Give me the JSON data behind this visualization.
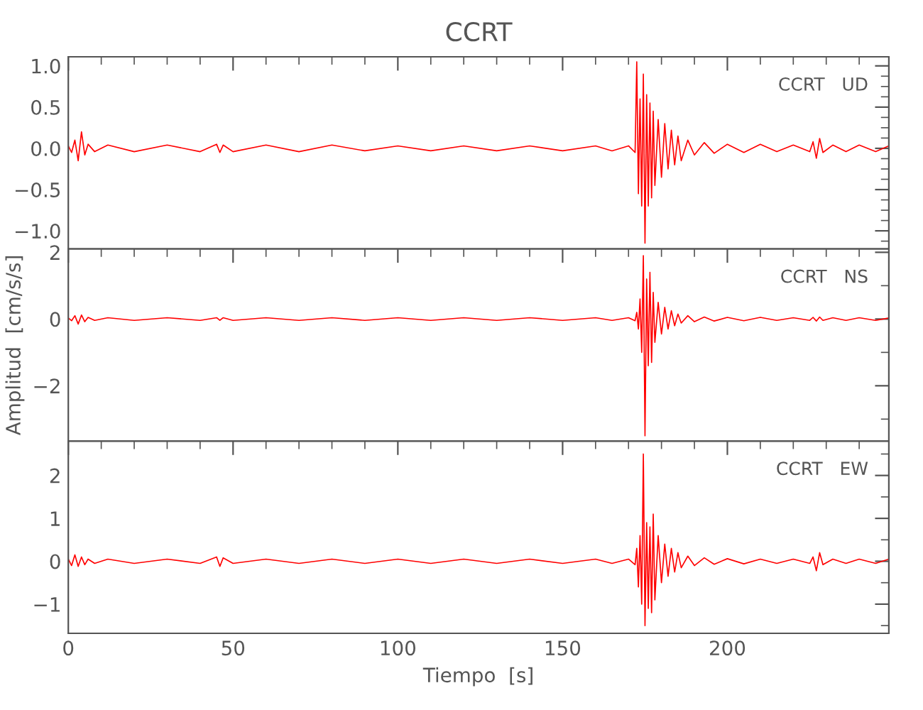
{
  "chart_data": [
    {
      "type": "line",
      "title": "CCRT",
      "annotations": [
        "CCRT   UD"
      ],
      "color": "#ff0000",
      "tick_labels": "y",
      "xlim": [
        0,
        249
      ],
      "xticks": [
        0,
        50,
        100,
        150,
        200
      ],
      "ylim": [
        -1.22,
        1.11
      ],
      "yticks": [
        {
          "value": -1.0,
          "label": "−1.0"
        },
        {
          "value": -0.5,
          "label": "−0.5"
        },
        {
          "value": 0,
          "label": "0.0"
        },
        {
          "value": 0.5,
          "label": "0.5"
        },
        {
          "value": 1.0,
          "label": "1.0"
        }
      ],
      "x": [
        0,
        1,
        2,
        3,
        4,
        5,
        6,
        8,
        12,
        20,
        30,
        40,
        45,
        46,
        47,
        50,
        60,
        70,
        80,
        90,
        100,
        110,
        120,
        130,
        140,
        150,
        160,
        165,
        170,
        172,
        172.5,
        173,
        173.5,
        174,
        174.5,
        175,
        175.5,
        176,
        176.5,
        177,
        177.5,
        178,
        179,
        180,
        181,
        182,
        183,
        184,
        185,
        186,
        188,
        190,
        193,
        196,
        200,
        205,
        210,
        215,
        220,
        225,
        226,
        227,
        228,
        229,
        232,
        236,
        240,
        245,
        249
      ],
      "values": [
        0.03,
        -0.05,
        0.1,
        -0.15,
        0.2,
        -0.08,
        0.05,
        -0.04,
        0.04,
        -0.04,
        0.04,
        -0.04,
        0.05,
        -0.05,
        0.04,
        -0.04,
        0.04,
        -0.04,
        0.04,
        -0.03,
        0.03,
        -0.03,
        0.03,
        -0.03,
        0.03,
        -0.03,
        0.03,
        -0.03,
        0.03,
        -0.05,
        1.05,
        -0.55,
        0.6,
        -0.7,
        0.9,
        -1.15,
        0.65,
        -0.7,
        0.55,
        -0.6,
        0.45,
        -0.45,
        0.35,
        -0.35,
        0.3,
        -0.25,
        0.22,
        -0.2,
        0.15,
        -0.15,
        0.1,
        -0.08,
        0.07,
        -0.06,
        0.05,
        -0.05,
        0.05,
        -0.04,
        0.04,
        -0.04,
        0.08,
        -0.12,
        0.12,
        -0.05,
        0.04,
        -0.04,
        0.04,
        -0.04,
        0.03
      ]
    },
    {
      "type": "line",
      "ylabel": "Amplitud  [cm/s/s]",
      "annotations": [
        "CCRT   NS"
      ],
      "color": "#ff0000",
      "tick_labels": "y",
      "xlim": [
        0,
        249
      ],
      "xticks": [
        0,
        50,
        100,
        150,
        200
      ],
      "ylim": [
        -3.66,
        2.1
      ],
      "yticks": [
        {
          "value": -2,
          "label": "−2"
        },
        0,
        2
      ],
      "x": [
        0,
        1,
        2,
        3,
        4,
        5,
        6,
        8,
        12,
        20,
        30,
        40,
        45,
        46,
        47,
        50,
        60,
        70,
        80,
        90,
        100,
        110,
        120,
        130,
        140,
        150,
        160,
        165,
        170,
        172,
        172.5,
        173,
        173.5,
        174,
        174.5,
        175,
        175.5,
        176,
        176.5,
        177,
        177.5,
        178,
        179,
        180,
        181,
        182,
        183,
        184,
        185,
        186,
        188,
        190,
        193,
        196,
        200,
        205,
        210,
        215,
        220,
        225,
        226,
        227,
        228,
        229,
        232,
        236,
        240,
        245,
        249
      ],
      "values": [
        0.03,
        -0.05,
        0.1,
        -0.15,
        0.12,
        -0.08,
        0.05,
        -0.04,
        0.04,
        -0.04,
        0.04,
        -0.04,
        0.04,
        -0.04,
        0.04,
        -0.04,
        0.04,
        -0.04,
        0.04,
        -0.04,
        0.04,
        -0.04,
        0.04,
        -0.04,
        0.04,
        -0.04,
        0.04,
        -0.04,
        0.04,
        -0.05,
        0.2,
        -0.3,
        0.6,
        -1.0,
        1.9,
        -3.5,
        1.2,
        -1.4,
        1.4,
        -1.3,
        0.8,
        -0.7,
        0.5,
        -0.45,
        0.35,
        -0.3,
        0.25,
        -0.2,
        0.15,
        -0.12,
        0.1,
        -0.08,
        0.06,
        -0.06,
        0.05,
        -0.05,
        0.05,
        -0.04,
        0.04,
        -0.04,
        0.05,
        -0.06,
        0.06,
        -0.04,
        0.04,
        -0.04,
        0.04,
        -0.04,
        0.03
      ]
    },
    {
      "type": "line",
      "xlabel": "Tiempo  [s]",
      "annotations": [
        "CCRT   EW"
      ],
      "color": "#ff0000",
      "xlim": [
        0,
        249
      ],
      "xticks": [
        0,
        50,
        100,
        150,
        200
      ],
      "ylim": [
        -1.68,
        2.8
      ],
      "yticks": [
        {
          "value": -1,
          "label": "−1"
        },
        0,
        1,
        2
      ],
      "x": [
        0,
        1,
        2,
        3,
        4,
        5,
        6,
        8,
        12,
        20,
        30,
        40,
        45,
        46,
        47,
        50,
        60,
        70,
        80,
        90,
        100,
        110,
        120,
        130,
        140,
        150,
        160,
        165,
        170,
        172,
        172.5,
        173,
        173.5,
        174,
        174.5,
        175,
        175.5,
        176,
        176.5,
        177,
        177.5,
        178,
        179,
        180,
        181,
        182,
        183,
        184,
        185,
        186,
        188,
        190,
        193,
        196,
        200,
        205,
        210,
        215,
        220,
        225,
        226,
        227,
        228,
        229,
        232,
        236,
        240,
        245,
        249
      ],
      "values": [
        0.05,
        -0.1,
        0.15,
        -0.12,
        0.1,
        -0.08,
        0.05,
        -0.05,
        0.05,
        -0.05,
        0.05,
        -0.05,
        0.1,
        -0.12,
        0.08,
        -0.05,
        0.05,
        -0.05,
        0.05,
        -0.05,
        0.05,
        -0.05,
        0.05,
        -0.05,
        0.05,
        -0.05,
        0.05,
        -0.05,
        0.05,
        -0.08,
        0.3,
        -0.6,
        0.6,
        -1.0,
        2.5,
        -1.5,
        0.9,
        -1.1,
        0.8,
        -1.2,
        1.1,
        -0.9,
        0.6,
        -0.5,
        0.4,
        -0.35,
        0.3,
        -0.25,
        0.2,
        -0.15,
        0.12,
        -0.1,
        0.08,
        -0.07,
        0.06,
        -0.06,
        0.05,
        -0.05,
        0.05,
        -0.05,
        0.1,
        -0.22,
        0.2,
        -0.08,
        0.05,
        -0.05,
        0.05,
        -0.05,
        0.05
      ]
    }
  ]
}
